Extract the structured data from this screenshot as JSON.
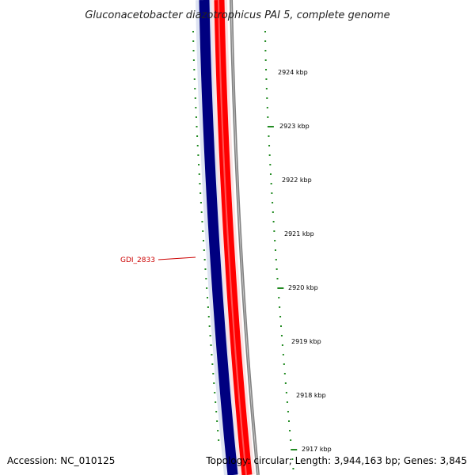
{
  "title": "Gluconacetobacter diazotrophicus PAI 5, complete genome",
  "accession": "Accession: NC_010125",
  "summary": "Topology: circular; Length: 3,944,163 bp; Genes: 3,845",
  "gene_label": "GDI_2833",
  "tick_labels": [
    "2924 kbp",
    "2923 kbp",
    "2922 kbp",
    "2921 kbp",
    "2920 kbp",
    "2919 kbp",
    "2918 kbp",
    "2917 kbp"
  ],
  "colors": {
    "forward_strand": "#000080",
    "reverse_strand": "#ff0000",
    "backbone": "#808080",
    "ticks": "#228b22",
    "gene_label": "#cc0000",
    "halo": "#dde3f2"
  }
}
